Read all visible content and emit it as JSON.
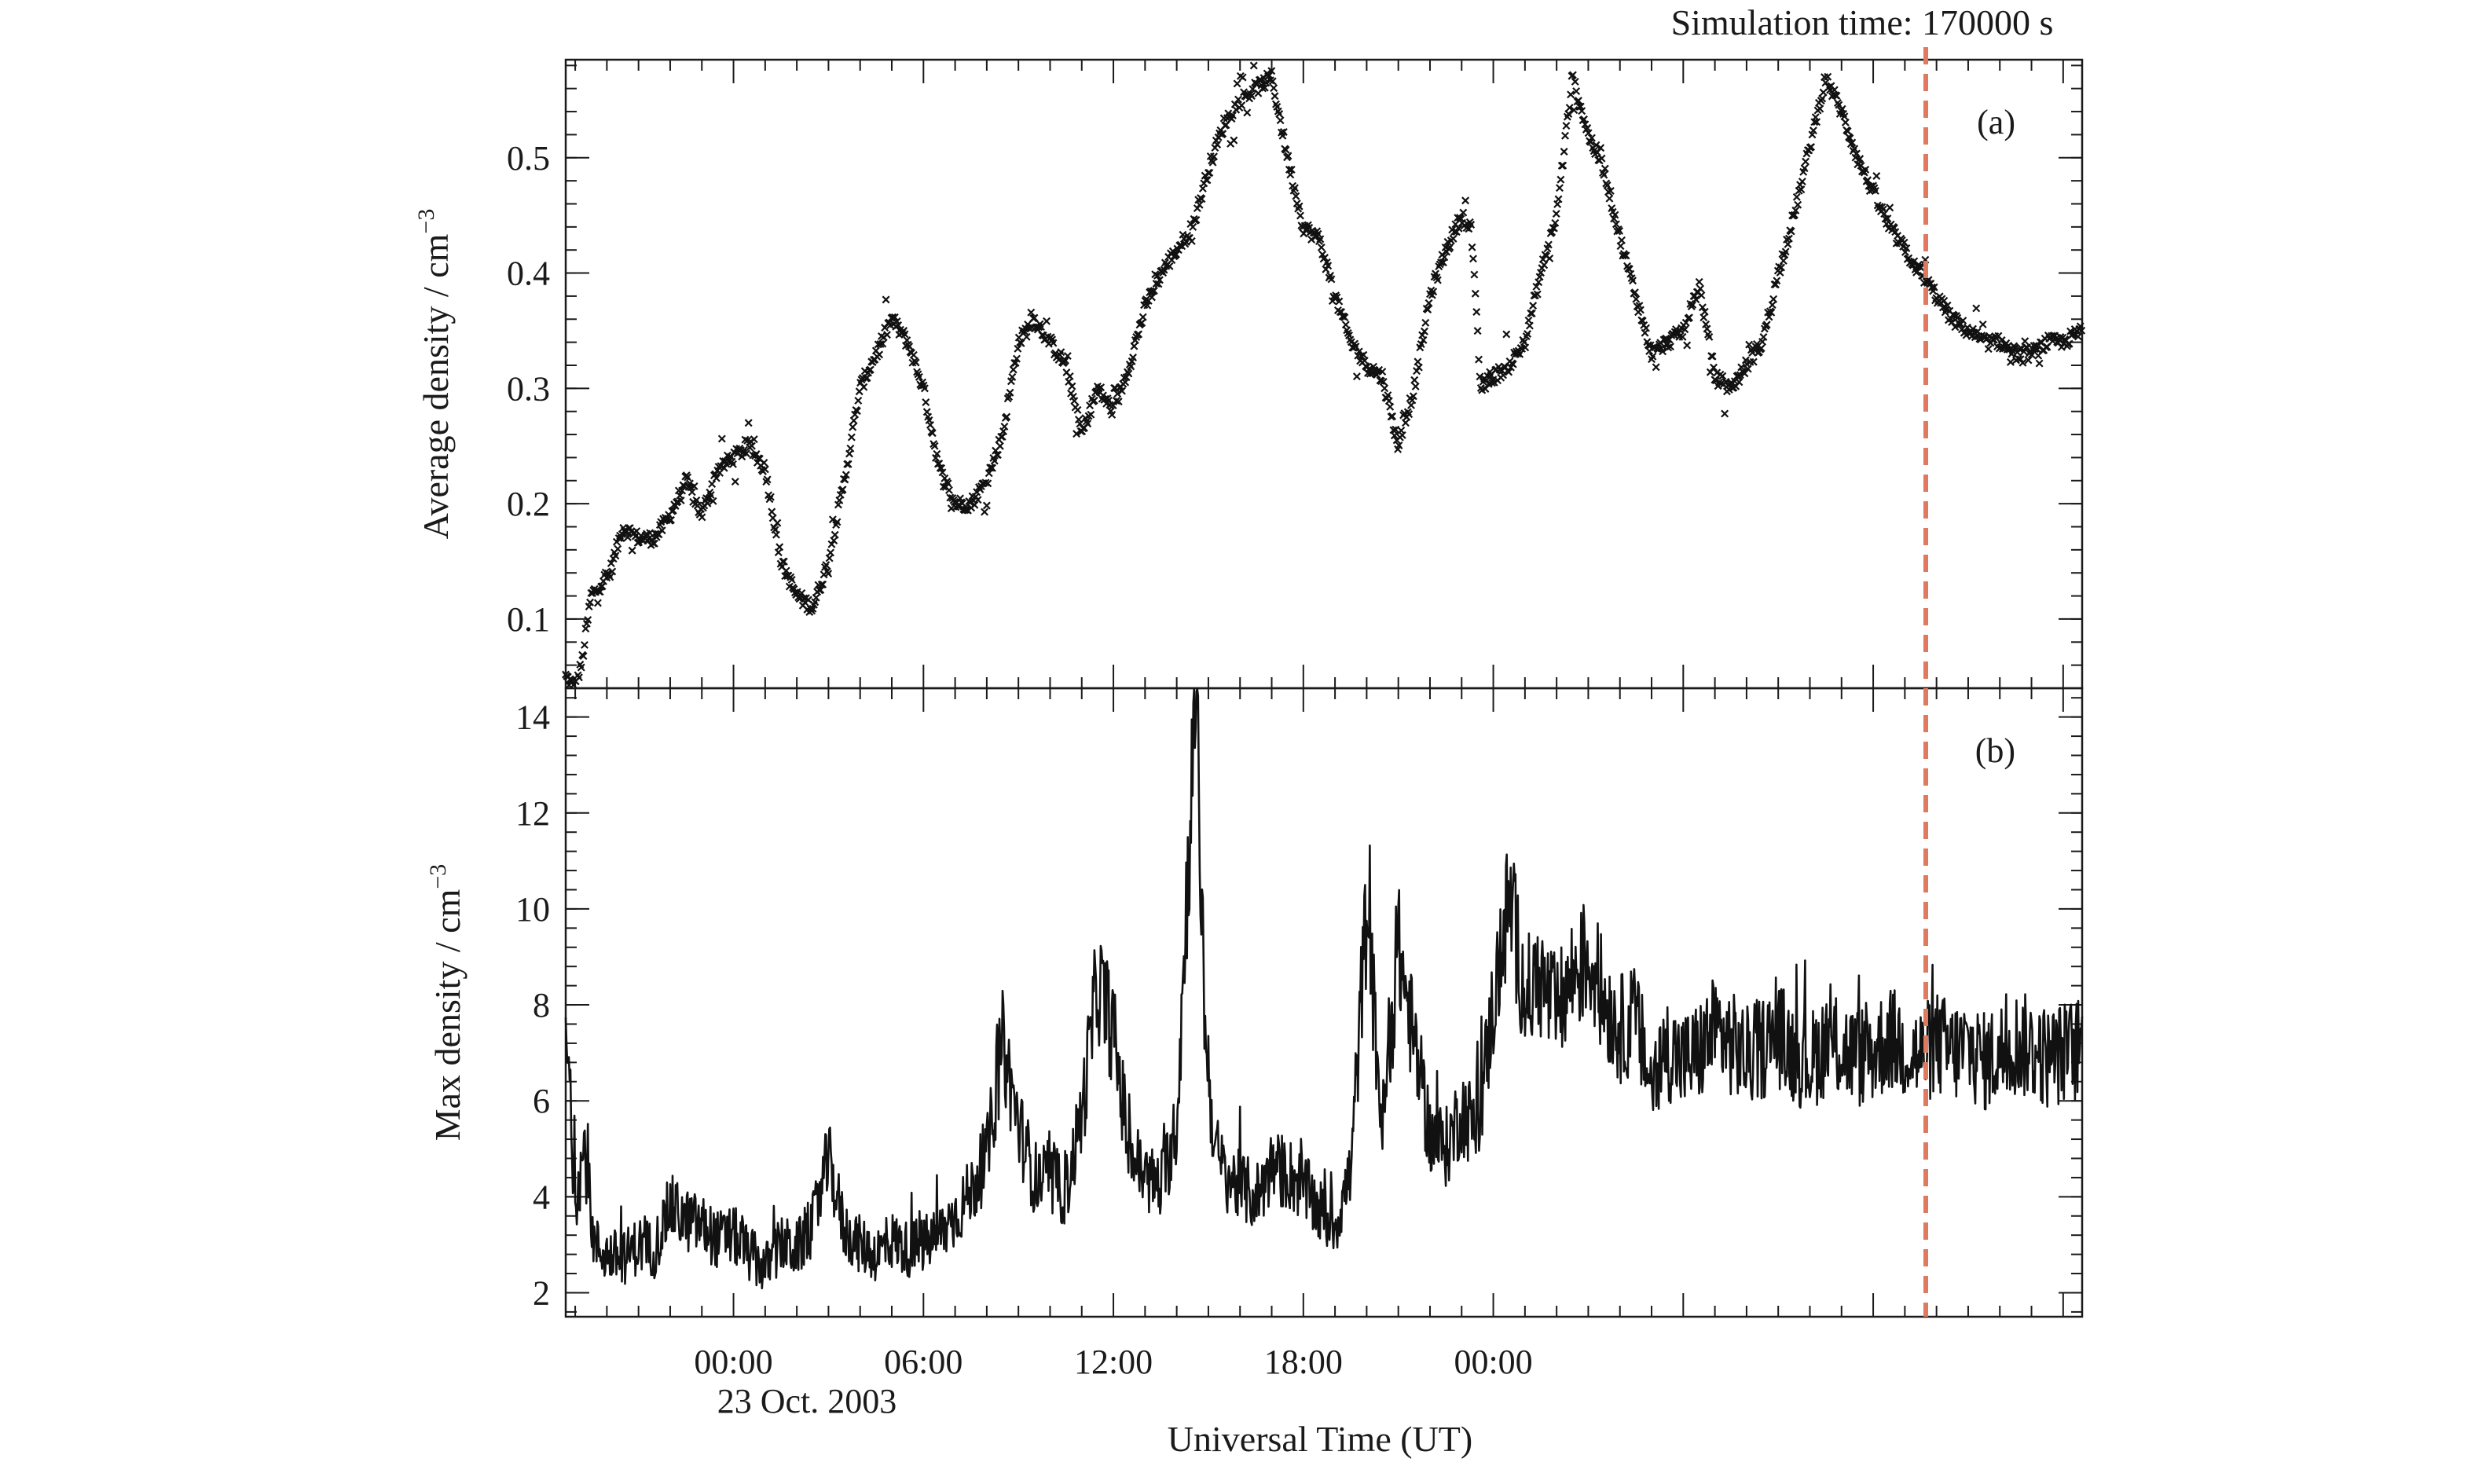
{
  "figure": {
    "simulation_label": "Simulation time: 170000 s",
    "simulation_color": "#e07a5f",
    "xlabel": "Universal Time (UT)",
    "date_label": "23 Oct. 2003"
  },
  "chart_data": [
    {
      "type": "scatter",
      "panel": "(a)",
      "title": "",
      "xlabel": "Universal Time (UT)",
      "ylabel": "Average density / cm",
      "ylabel_superscript": "−3",
      "x_unit": "hours relative to 23 Oct. 2003 00:00 UT",
      "xlim": [
        -5.3,
        42.6
      ],
      "ylim": [
        0.04,
        0.585
      ],
      "x_ticks": [
        0,
        6,
        12,
        18,
        24
      ],
      "x_tick_labels": [
        "00:00",
        "06:00",
        "12:00",
        "18:00",
        "00:00"
      ],
      "y_ticks": [
        0.1,
        0.2,
        0.3,
        0.4,
        0.5
      ],
      "y_tick_labels": [
        "0.1",
        "0.2",
        "0.3",
        "0.4",
        "0.5"
      ],
      "marker": "x",
      "grid": false,
      "series": [
        {
          "x": [
            -5.3,
            -5.0,
            -4.8,
            -4.5,
            -4.2,
            -3.9,
            -3.5,
            -3.0,
            -2.5,
            -2.0,
            -1.5,
            -1.0,
            -0.5,
            0.0,
            0.5,
            1.0,
            1.5,
            2.0,
            2.5,
            3.0,
            3.5,
            4.0,
            4.5,
            5.0,
            5.5,
            6.0,
            6.5,
            7.0,
            7.5,
            8.0,
            8.5,
            9.0,
            9.5,
            10.0,
            10.5,
            11.0,
            11.5,
            12.0,
            12.5,
            13.0,
            13.5,
            14.0,
            14.5,
            15.0,
            15.5,
            16.0,
            16.5,
            17.0,
            17.5,
            18.0,
            18.5,
            19.0,
            19.5,
            20.0,
            20.5,
            21.0,
            21.5,
            22.0,
            22.5,
            23.0,
            23.3,
            23.6,
            24.0,
            24.5,
            25.0,
            25.5,
            26.0,
            26.5,
            27.0,
            27.5,
            28.0,
            28.5,
            29.0,
            29.5,
            30.0,
            30.5,
            31.0,
            31.5,
            32.0,
            32.5,
            33.0,
            33.5,
            34.0,
            34.5,
            35.0,
            35.5,
            36.0,
            36.5,
            37.0,
            37.5,
            38.0,
            38.5,
            39.0,
            39.5,
            40.0,
            40.5,
            41.0,
            41.5,
            42.0,
            42.6
          ],
          "y": [
            0.05,
            0.04,
            0.06,
            0.12,
            0.13,
            0.14,
            0.18,
            0.17,
            0.17,
            0.19,
            0.22,
            0.19,
            0.23,
            0.24,
            0.25,
            0.23,
            0.15,
            0.12,
            0.11,
            0.15,
            0.22,
            0.3,
            0.33,
            0.36,
            0.34,
            0.3,
            0.23,
            0.2,
            0.2,
            0.22,
            0.26,
            0.34,
            0.36,
            0.34,
            0.32,
            0.26,
            0.3,
            0.28,
            0.32,
            0.37,
            0.4,
            0.42,
            0.44,
            0.49,
            0.53,
            0.55,
            0.56,
            0.57,
            0.5,
            0.44,
            0.43,
            0.38,
            0.34,
            0.32,
            0.31,
            0.25,
            0.3,
            0.38,
            0.42,
            0.45,
            0.44,
            0.3,
            0.31,
            0.32,
            0.34,
            0.4,
            0.45,
            0.57,
            0.52,
            0.49,
            0.43,
            0.38,
            0.33,
            0.34,
            0.35,
            0.39,
            0.31,
            0.3,
            0.32,
            0.34,
            0.4,
            0.45,
            0.51,
            0.57,
            0.54,
            0.5,
            0.47,
            0.44,
            0.42,
            0.4,
            0.38,
            0.36,
            0.35,
            0.34,
            0.34,
            0.33,
            0.33,
            0.34,
            0.34,
            0.35
          ]
        }
      ]
    },
    {
      "type": "line",
      "panel": "(b)",
      "title": "",
      "xlabel": "Universal Time (UT)",
      "ylabel": "Max density / cm",
      "ylabel_superscript": "−3",
      "x_unit": "hours relative to 23 Oct. 2003 00:00 UT",
      "xlim": [
        -5.3,
        42.6
      ],
      "ylim": [
        1.5,
        14.6
      ],
      "x_ticks": [
        0,
        6,
        12,
        18,
        24
      ],
      "x_tick_labels": [
        "00:00",
        "06:00",
        "12:00",
        "18:00",
        "00:00"
      ],
      "y_ticks": [
        2,
        4,
        6,
        8,
        10,
        12,
        14
      ],
      "y_tick_labels": [
        "2",
        "4",
        "6",
        "8",
        "10",
        "12",
        "14"
      ],
      "grid": false,
      "series": [
        {
          "x": [
            -5.3,
            -5.0,
            -4.7,
            -4.4,
            -4.0,
            -3.5,
            -3.0,
            -2.5,
            -2.0,
            -1.5,
            -1.0,
            -0.5,
            0.0,
            0.5,
            1.0,
            1.5,
            2.0,
            2.5,
            3.0,
            3.5,
            4.0,
            4.5,
            5.0,
            5.5,
            6.0,
            6.5,
            7.0,
            7.5,
            8.0,
            8.5,
            9.0,
            9.5,
            10.0,
            10.5,
            11.0,
            11.5,
            12.0,
            12.5,
            13.0,
            13.5,
            14.0,
            14.3,
            14.6,
            14.9,
            15.2,
            15.5,
            16.0,
            16.5,
            17.0,
            17.5,
            18.0,
            18.5,
            19.0,
            19.5,
            20.0,
            20.5,
            21.0,
            21.5,
            22.0,
            22.5,
            23.0,
            23.5,
            24.0,
            24.5,
            25.0,
            25.5,
            26.0,
            26.5,
            27.0,
            27.5,
            28.0,
            28.5,
            29.0,
            29.5,
            30.0,
            30.5,
            31.0,
            31.5,
            32.0,
            32.5,
            33.0,
            33.5,
            34.0,
            34.5,
            35.0,
            35.5,
            36.0,
            36.5,
            37.0,
            37.5,
            38.0,
            38.5,
            39.0,
            39.5,
            40.0,
            40.5,
            41.0,
            41.5,
            42.0,
            42.6
          ],
          "y": [
            7.5,
            4.0,
            5.0,
            3.0,
            2.8,
            2.7,
            3.0,
            2.9,
            3.8,
            3.5,
            3.4,
            3.1,
            3.2,
            2.8,
            2.5,
            3.0,
            2.9,
            3.4,
            4.8,
            3.3,
            3.0,
            2.8,
            3.1,
            2.9,
            3.0,
            3.2,
            3.6,
            4.1,
            4.8,
            7.2,
            5.5,
            4.4,
            4.3,
            4.1,
            5.7,
            8.5,
            7.4,
            5.0,
            4.4,
            4.2,
            5.5,
            10.0,
            14.5,
            7.5,
            5.0,
            4.5,
            4.2,
            4.0,
            4.6,
            4.5,
            4.2,
            3.7,
            3.4,
            4.5,
            10.0,
            5.4,
            9.2,
            7.2,
            5.3,
            5.0,
            5.8,
            5.4,
            8.0,
            10.2,
            8.2,
            8.5,
            7.8,
            8.6,
            9.0,
            8.1,
            7.5,
            7.7,
            6.3,
            7.1,
            6.8,
            7.0,
            7.5,
            7.2,
            6.9,
            7.1,
            7.4,
            7.0,
            6.8,
            7.2,
            7.1,
            6.9,
            7.0,
            7.3,
            7.1,
            6.9,
            7.2,
            7.0,
            7.1,
            6.8,
            7.0,
            7.2,
            7.1,
            6.9,
            7.0,
            7.1
          ]
        }
      ]
    }
  ]
}
